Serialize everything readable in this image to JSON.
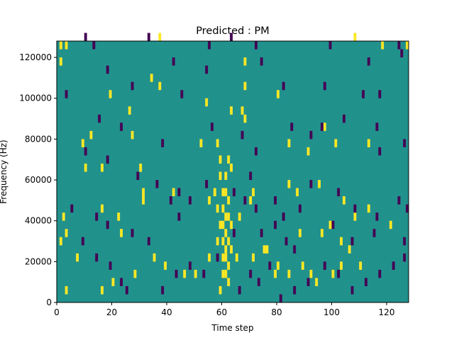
{
  "chart_data": {
    "type": "heatmap",
    "title": "Predicted : PM",
    "xlabel": "Time step",
    "ylabel": "Frequency (Hz)",
    "xlim": [
      0,
      128
    ],
    "ylim": [
      0,
      128000
    ],
    "xticks": [
      0,
      20,
      40,
      60,
      80,
      100,
      120
    ],
    "yticks": [
      0,
      20000,
      40000,
      60000,
      80000,
      100000,
      120000
    ],
    "xtick_labels": [
      "0",
      "20",
      "40",
      "60",
      "80",
      "100",
      "120"
    ],
    "ytick_labels": [
      "0",
      "20000",
      "40000",
      "60000",
      "80000",
      "100000",
      "120000"
    ],
    "grid": false,
    "colors": {
      "background": "#21918c",
      "high": "#fde725",
      "low": "#440154"
    },
    "cell_width": 1,
    "cell_height": 4000,
    "high_cells": [
      [
        1,
        124000
      ],
      [
        3,
        124000
      ],
      [
        37,
        128000
      ],
      [
        108,
        128000
      ],
      [
        1,
        116000
      ],
      [
        68,
        116000
      ],
      [
        118,
        124000
      ],
      [
        127,
        124000
      ],
      [
        34,
        108000
      ],
      [
        37,
        104000
      ],
      [
        68,
        104000
      ],
      [
        80,
        100000
      ],
      [
        68,
        88000
      ],
      [
        54,
        96000
      ],
      [
        12,
        80000
      ],
      [
        26,
        92000
      ],
      [
        19,
        100000
      ],
      [
        27,
        80000
      ],
      [
        67,
        92000
      ],
      [
        63,
        92000
      ],
      [
        58,
        76000
      ],
      [
        84,
        76000
      ],
      [
        91,
        72000
      ],
      [
        101,
        76000
      ],
      [
        113,
        76000
      ],
      [
        9,
        76000
      ],
      [
        10,
        64000
      ],
      [
        16,
        64000
      ],
      [
        30,
        64000
      ],
      [
        52,
        76000
      ],
      [
        31,
        52000
      ],
      [
        31,
        48000
      ],
      [
        42,
        52000
      ],
      [
        55,
        48000
      ],
      [
        57,
        52000
      ],
      [
        71,
        52000
      ],
      [
        84,
        56000
      ],
      [
        87,
        52000
      ],
      [
        95,
        56000
      ],
      [
        104,
        48000
      ],
      [
        108,
        40000
      ],
      [
        113,
        44000
      ],
      [
        121,
        36000
      ],
      [
        2,
        40000
      ],
      [
        3,
        32000
      ],
      [
        1,
        28000
      ],
      [
        16,
        44000
      ],
      [
        22,
        40000
      ],
      [
        23,
        32000
      ],
      [
        7,
        20000
      ],
      [
        35,
        20000
      ],
      [
        39,
        16000
      ],
      [
        61,
        24000
      ],
      [
        65,
        20000
      ],
      [
        71,
        20000
      ],
      [
        75,
        24000
      ],
      [
        80,
        16000
      ],
      [
        84,
        12000
      ],
      [
        89,
        16000
      ],
      [
        92,
        12000
      ],
      [
        94,
        8000
      ],
      [
        100,
        12000
      ],
      [
        103,
        16000
      ],
      [
        110,
        16000
      ],
      [
        3,
        4000
      ],
      [
        16,
        4000
      ],
      [
        20,
        8000
      ],
      [
        28,
        12000
      ],
      [
        46,
        12000
      ],
      [
        50,
        12000
      ],
      [
        55,
        20000
      ],
      [
        59,
        4000
      ],
      [
        60,
        52000
      ],
      [
        60,
        44000
      ],
      [
        60,
        36000
      ],
      [
        60,
        28000
      ],
      [
        60,
        20000
      ],
      [
        60,
        12000
      ],
      [
        61,
        60000
      ],
      [
        61,
        52000
      ],
      [
        61,
        40000
      ],
      [
        61,
        32000
      ],
      [
        61,
        20000
      ],
      [
        61,
        12000
      ],
      [
        62,
        48000
      ],
      [
        62,
        40000
      ],
      [
        62,
        28000
      ],
      [
        62,
        16000
      ],
      [
        62,
        8000
      ],
      [
        59,
        60000
      ],
      [
        59,
        36000
      ],
      [
        63,
        36000
      ],
      [
        63,
        24000
      ],
      [
        58,
        44000
      ],
      [
        58,
        28000
      ],
      [
        79,
        12000
      ],
      [
        97,
        84000
      ],
      [
        96,
        32000
      ],
      [
        99,
        36000
      ],
      [
        103,
        28000
      ],
      [
        106,
        24000
      ],
      [
        88,
        32000
      ],
      [
        76,
        24000
      ],
      [
        62,
        68000
      ],
      [
        63,
        64000
      ],
      [
        59,
        68000
      ],
      [
        66,
        40000
      ],
      [
        70,
        48000
      ]
    ],
    "low_cells": [
      [
        10,
        128000
      ],
      [
        13,
        124000
      ],
      [
        33,
        128000
      ],
      [
        42,
        116000
      ],
      [
        55,
        124000
      ],
      [
        63,
        128000
      ],
      [
        72,
        124000
      ],
      [
        99,
        124000
      ],
      [
        124,
        124000
      ],
      [
        113,
        116000
      ],
      [
        125,
        120000
      ],
      [
        3,
        100000
      ],
      [
        18,
        112000
      ],
      [
        27,
        104000
      ],
      [
        45,
        100000
      ],
      [
        54,
        112000
      ],
      [
        74,
        116000
      ],
      [
        82,
        104000
      ],
      [
        97,
        104000
      ],
      [
        111,
        100000
      ],
      [
        117,
        100000
      ],
      [
        15,
        88000
      ],
      [
        23,
        84000
      ],
      [
        38,
        76000
      ],
      [
        56,
        84000
      ],
      [
        67,
        80000
      ],
      [
        72,
        72000
      ],
      [
        85,
        84000
      ],
      [
        92,
        80000
      ],
      [
        96,
        84000
      ],
      [
        104,
        88000
      ],
      [
        116,
        84000
      ],
      [
        117,
        72000
      ],
      [
        126,
        76000
      ],
      [
        10,
        72000
      ],
      [
        18,
        68000
      ],
      [
        29,
        60000
      ],
      [
        36,
        56000
      ],
      [
        44,
        52000
      ],
      [
        48,
        48000
      ],
      [
        54,
        56000
      ],
      [
        70,
        60000
      ],
      [
        79,
        48000
      ],
      [
        82,
        40000
      ],
      [
        88,
        44000
      ],
      [
        92,
        56000
      ],
      [
        102,
        52000
      ],
      [
        108,
        44000
      ],
      [
        116,
        40000
      ],
      [
        124,
        48000
      ],
      [
        127,
        44000
      ],
      [
        5,
        44000
      ],
      [
        14,
        40000
      ],
      [
        18,
        36000
      ],
      [
        27,
        32000
      ],
      [
        33,
        28000
      ],
      [
        9,
        28000
      ],
      [
        14,
        20000
      ],
      [
        19,
        16000
      ],
      [
        23,
        8000
      ],
      [
        25,
        4000
      ],
      [
        38,
        4000
      ],
      [
        43,
        12000
      ],
      [
        48,
        16000
      ],
      [
        53,
        12000
      ],
      [
        58,
        20000
      ],
      [
        66,
        4000
      ],
      [
        70,
        12000
      ],
      [
        73,
        8000
      ],
      [
        77,
        16000
      ],
      [
        81,
        0
      ],
      [
        86,
        4000
      ],
      [
        91,
        8000
      ],
      [
        97,
        16000
      ],
      [
        102,
        12000
      ],
      [
        107,
        4000
      ],
      [
        112,
        8000
      ],
      [
        117,
        12000
      ],
      [
        122,
        16000
      ],
      [
        126,
        20000
      ],
      [
        41,
        48000
      ],
      [
        44,
        40000
      ],
      [
        64,
        32000
      ],
      [
        64,
        52000
      ],
      [
        68,
        48000
      ],
      [
        72,
        44000
      ],
      [
        74,
        32000
      ],
      [
        79,
        36000
      ],
      [
        83,
        28000
      ],
      [
        86,
        24000
      ],
      [
        100,
        36000
      ],
      [
        107,
        28000
      ],
      [
        115,
        32000
      ],
      [
        126,
        28000
      ]
    ]
  }
}
